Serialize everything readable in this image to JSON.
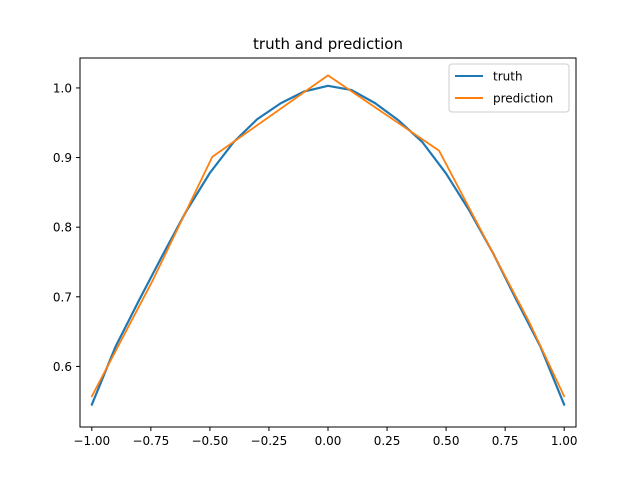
{
  "chart_data": {
    "type": "line",
    "title": "truth and prediction",
    "xlabel": "",
    "ylabel": "",
    "xlim": [
      -1.05,
      1.05
    ],
    "ylim": [
      0.513,
      1.043
    ],
    "x_ticks": [
      -1.0,
      -0.75,
      -0.5,
      -0.25,
      0.0,
      0.25,
      0.5,
      0.75,
      1.0
    ],
    "x_tick_labels": [
      "−1.00",
      "−0.75",
      "−0.50",
      "−0.25",
      "0.00",
      "0.25",
      "0.50",
      "0.75",
      "1.00"
    ],
    "y_ticks": [
      0.6,
      0.7,
      0.8,
      0.9,
      1.0
    ],
    "y_tick_labels": [
      "0.6",
      "0.7",
      "0.8",
      "0.9",
      "1.0"
    ],
    "grid": false,
    "legend_position": "upper right",
    "series": [
      {
        "name": "truth",
        "color": "#1f77b4",
        "x": [
          -1.0,
          -0.9,
          -0.8,
          -0.7,
          -0.6,
          -0.5,
          -0.4,
          -0.3,
          -0.2,
          -0.1,
          0.0,
          0.1,
          0.2,
          0.3,
          0.4,
          0.5,
          0.6,
          0.7,
          0.8,
          0.9,
          1.0
        ],
        "y": [
          0.545,
          0.628,
          0.695,
          0.76,
          0.823,
          0.878,
          0.922,
          0.955,
          0.978,
          0.995,
          1.003,
          0.997,
          0.978,
          0.953,
          0.922,
          0.877,
          0.823,
          0.762,
          0.694,
          0.628,
          0.545
        ]
      },
      {
        "name": "prediction",
        "color": "#ff7f0e",
        "x": [
          -1.0,
          -0.74,
          -0.49,
          0.0,
          0.47,
          0.85,
          1.0
        ],
        "y": [
          0.557,
          0.725,
          0.901,
          1.018,
          0.91,
          0.665,
          0.557
        ]
      }
    ]
  }
}
